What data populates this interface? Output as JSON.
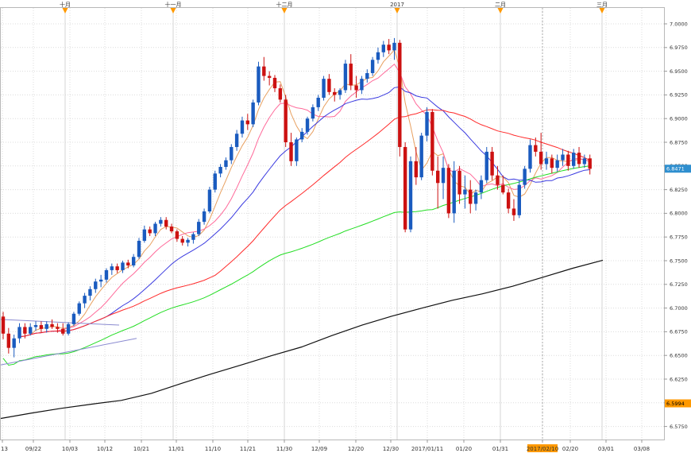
{
  "chart_data": {
    "type": "candlestick",
    "ylim": [
      6.5625,
      7.0125
    ],
    "y_ticks": [
      "7.0000",
      "6.9750",
      "6.9500",
      "6.9250",
      "6.9000",
      "6.8750",
      "6.8500",
      "6.8250",
      "6.8000",
      "6.7750",
      "6.7500",
      "6.7250",
      "6.7000",
      "6.6750",
      "6.6500",
      "6.6250",
      "6.6000",
      "6.5750"
    ],
    "x_ticks": [
      "13",
      "09/22",
      "10/03",
      "10/12",
      "10/21",
      "11/01",
      "11/10",
      "11/21",
      "11/30",
      "12/09",
      "12/20",
      "12/30",
      "2017/01/11",
      "01/20",
      "01/31",
      "2017/02/10",
      "02/20",
      "03/01",
      "03/08"
    ],
    "month_markers": [
      "十月",
      "十一月",
      "十二月",
      "2017",
      "二月",
      "三月"
    ],
    "last_price": "6.8471",
    "long_ma_value": "6.5994",
    "colors": {
      "up": "#1a5bbf",
      "down": "#cc1111",
      "ma5": "#e8a060",
      "ma10": "#ff6a9a",
      "ma20": "#3a3ae0",
      "ma60": "#ff2a2a",
      "ma120": "#22dd22",
      "ma250": "#111111",
      "highlight": "#ff9900"
    },
    "ohlc": [
      [
        6.691,
        6.696,
        6.667,
        6.673
      ],
      [
        6.673,
        6.679,
        6.652,
        6.658
      ],
      [
        6.658,
        6.672,
        6.648,
        6.668
      ],
      [
        6.668,
        6.684,
        6.663,
        6.68
      ],
      [
        6.68,
        6.684,
        6.668,
        6.673
      ],
      [
        6.673,
        6.684,
        6.671,
        6.68
      ],
      [
        6.68,
        6.686,
        6.676,
        6.682
      ],
      [
        6.682,
        6.686,
        6.674,
        6.678
      ],
      [
        6.678,
        6.686,
        6.674,
        6.683
      ],
      [
        6.683,
        6.688,
        6.678,
        6.68
      ],
      [
        6.68,
        6.684,
        6.674,
        6.678
      ],
      [
        6.678,
        6.684,
        6.671,
        6.673
      ],
      [
        6.673,
        6.685,
        6.671,
        6.683
      ],
      [
        6.683,
        6.696,
        6.681,
        6.694
      ],
      [
        6.694,
        6.707,
        6.692,
        6.705
      ],
      [
        6.705,
        6.716,
        6.7,
        6.713
      ],
      [
        6.713,
        6.723,
        6.708,
        6.72
      ],
      [
        6.72,
        6.731,
        6.716,
        6.728
      ],
      [
        6.728,
        6.735,
        6.722,
        6.73
      ],
      [
        6.73,
        6.742,
        6.727,
        6.74
      ],
      [
        6.74,
        6.747,
        6.735,
        6.744
      ],
      [
        6.744,
        6.747,
        6.737,
        6.74
      ],
      [
        6.74,
        6.75,
        6.737,
        6.748
      ],
      [
        6.748,
        6.751,
        6.742,
        6.745
      ],
      [
        6.745,
        6.757,
        6.743,
        6.754
      ],
      [
        6.754,
        6.774,
        6.752,
        6.771
      ],
      [
        6.771,
        6.787,
        6.769,
        6.783
      ],
      [
        6.783,
        6.786,
        6.776,
        6.779
      ],
      [
        6.779,
        6.791,
        6.776,
        6.789
      ],
      [
        6.789,
        6.796,
        6.786,
        6.793
      ],
      [
        6.793,
        6.796,
        6.783,
        6.786
      ],
      [
        6.786,
        6.789,
        6.779,
        6.781
      ],
      [
        6.781,
        6.783,
        6.77,
        6.773
      ],
      [
        6.773,
        6.776,
        6.766,
        6.769
      ],
      [
        6.769,
        6.774,
        6.765,
        6.772
      ],
      [
        6.772,
        6.78,
        6.768,
        6.778
      ],
      [
        6.778,
        6.794,
        6.776,
        6.791
      ],
      [
        6.791,
        6.805,
        6.788,
        6.802
      ],
      [
        6.802,
        6.828,
        6.8,
        6.825
      ],
      [
        6.825,
        6.845,
        6.822,
        6.842
      ],
      [
        6.842,
        6.852,
        6.838,
        6.849
      ],
      [
        6.849,
        6.859,
        6.846,
        6.856
      ],
      [
        6.856,
        6.873,
        6.852,
        6.87
      ],
      [
        6.87,
        6.888,
        6.866,
        6.884
      ],
      [
        6.884,
        6.902,
        6.88,
        6.898
      ],
      [
        6.898,
        6.905,
        6.888,
        6.894
      ],
      [
        6.894,
        6.92,
        6.891,
        6.917
      ],
      [
        6.917,
        6.96,
        6.914,
        6.955
      ],
      [
        6.955,
        6.965,
        6.94,
        6.945
      ],
      [
        6.945,
        6.95,
        6.935,
        6.943
      ],
      [
        6.943,
        6.946,
        6.928,
        6.932
      ],
      [
        6.932,
        6.936,
        6.917,
        6.92
      ],
      [
        6.92,
        6.925,
        6.87,
        6.875
      ],
      [
        6.875,
        6.885,
        6.85,
        6.855
      ],
      [
        6.855,
        6.88,
        6.85,
        6.878
      ],
      [
        6.878,
        6.89,
        6.875,
        6.886
      ],
      [
        6.886,
        6.902,
        6.883,
        6.9
      ],
      [
        6.9,
        6.915,
        6.897,
        6.912
      ],
      [
        6.912,
        6.925,
        6.908,
        6.922
      ],
      [
        6.922,
        6.945,
        6.919,
        6.942
      ],
      [
        6.942,
        6.947,
        6.925,
        6.928
      ],
      [
        6.928,
        6.932,
        6.918,
        6.925
      ],
      [
        6.925,
        6.932,
        6.92,
        6.93
      ],
      [
        6.93,
        6.962,
        6.927,
        6.958
      ],
      [
        6.958,
        6.968,
        6.93,
        6.935
      ],
      [
        6.935,
        6.945,
        6.922,
        6.93
      ],
      [
        6.93,
        6.945,
        6.926,
        6.942
      ],
      [
        6.942,
        6.952,
        6.938,
        6.948
      ],
      [
        6.948,
        6.965,
        6.945,
        6.962
      ],
      [
        6.962,
        6.975,
        6.958,
        6.97
      ],
      [
        6.97,
        6.982,
        6.965,
        6.978
      ],
      [
        6.978,
        6.984,
        6.968,
        6.972
      ],
      [
        6.972,
        6.985,
        6.962,
        6.98
      ],
      [
        6.98,
        6.983,
        6.86,
        6.87
      ],
      [
        6.87,
        6.875,
        6.78,
        6.783
      ],
      [
        6.783,
        6.86,
        6.78,
        6.855
      ],
      [
        6.855,
        6.87,
        6.83,
        6.838
      ],
      [
        6.838,
        6.885,
        6.835,
        6.882
      ],
      [
        6.882,
        6.912,
        6.876,
        6.907
      ],
      [
        6.907,
        6.91,
        6.84,
        6.845
      ],
      [
        6.845,
        6.86,
        6.805,
        6.832
      ],
      [
        6.832,
        6.86,
        6.815,
        6.848
      ],
      [
        6.848,
        6.852,
        6.795,
        6.8
      ],
      [
        6.8,
        6.855,
        6.79,
        6.845
      ],
      [
        6.845,
        6.85,
        6.81,
        6.82
      ],
      [
        6.82,
        6.84,
        6.805,
        6.825
      ],
      [
        6.825,
        6.835,
        6.8,
        6.81
      ],
      [
        6.81,
        6.825,
        6.803,
        6.822
      ],
      [
        6.822,
        6.84,
        6.815,
        6.835
      ],
      [
        6.835,
        6.87,
        6.832,
        6.865
      ],
      [
        6.865,
        6.87,
        6.835,
        6.84
      ],
      [
        6.84,
        6.85,
        6.825,
        6.83
      ],
      [
        6.83,
        6.84,
        6.82,
        6.822
      ],
      [
        6.822,
        6.826,
        6.8,
        6.805
      ],
      [
        6.805,
        6.815,
        6.792,
        6.798
      ],
      [
        6.798,
        6.835,
        6.795,
        6.83
      ],
      [
        6.83,
        6.85,
        6.826,
        6.847
      ],
      [
        6.847,
        6.878,
        6.843,
        6.872
      ],
      [
        6.872,
        6.88,
        6.86,
        6.865
      ],
      [
        6.865,
        6.885,
        6.846,
        6.852
      ],
      [
        6.852,
        6.865,
        6.846,
        6.858
      ],
      [
        6.858,
        6.862,
        6.842,
        6.848
      ],
      [
        6.848,
        6.862,
        6.844,
        6.856
      ],
      [
        6.856,
        6.868,
        6.85,
        6.862
      ],
      [
        6.862,
        6.866,
        6.845,
        6.85
      ],
      [
        6.85,
        6.868,
        6.847,
        6.864
      ],
      [
        6.864,
        6.87,
        6.848,
        6.852
      ],
      [
        6.852,
        6.862,
        6.848,
        6.858
      ],
      [
        6.858,
        6.862,
        6.841,
        6.847
      ]
    ],
    "ma250": [
      6.5835,
      6.589,
      6.5941,
      6.5985,
      6.6025,
      6.61,
      6.6205,
      6.6305,
      6.64,
      6.6498,
      6.659,
      6.671,
      6.682,
      6.6915,
      6.7,
      6.7082,
      6.715,
      6.723,
      6.7325,
      6.742,
      6.7505
    ]
  }
}
